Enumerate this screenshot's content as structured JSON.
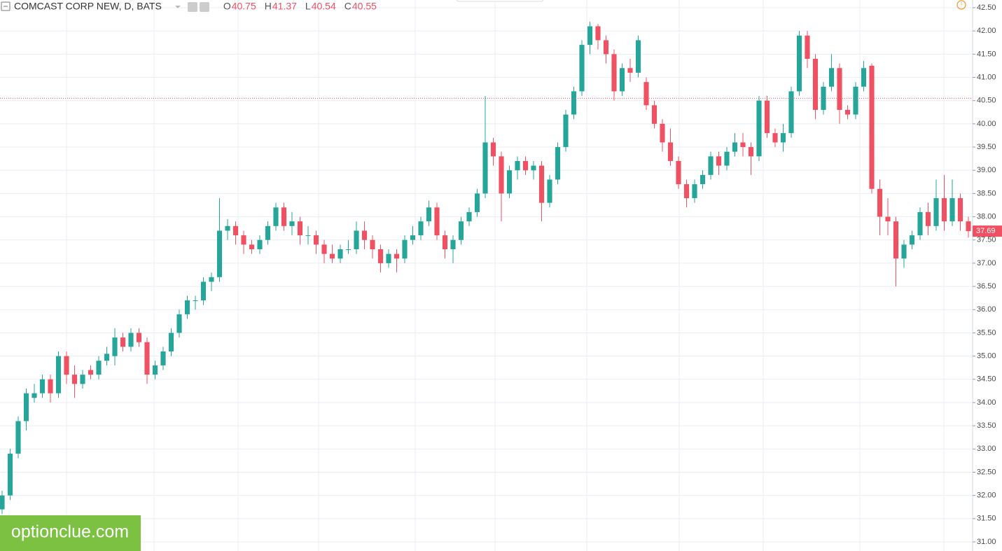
{
  "chart_data": {
    "type": "candlestick",
    "title": "COMCAST CORP NEW, D, BATS",
    "legend": [
      {
        "label": "O",
        "value": 40.75
      },
      {
        "label": "H",
        "value": 41.37
      },
      {
        "label": "L",
        "value": 40.54
      },
      {
        "label": "C",
        "value": 40.55
      }
    ],
    "last_price": 37.69,
    "up_color": "#26a69a",
    "down_color": "#ef5062",
    "watermark": "optionclue.com",
    "ylim": [
      30.9,
      42.6
    ],
    "yticks": [
      {
        "value": 31,
        "label": "31.00"
      },
      {
        "value": 31.5,
        "label": "31.50"
      },
      {
        "value": 32,
        "label": "32.00"
      },
      {
        "value": 32.5,
        "label": "32.50"
      },
      {
        "value": 33,
        "label": "33.00"
      },
      {
        "value": 33.5,
        "label": "33.50"
      },
      {
        "value": 34,
        "label": "34.00"
      },
      {
        "value": 34.5,
        "label": "34.50"
      },
      {
        "value": 35,
        "label": "35.00"
      },
      {
        "value": 35.5,
        "label": "35.50"
      },
      {
        "value": 36,
        "label": "36.00"
      },
      {
        "value": 36.5,
        "label": "36.50"
      },
      {
        "value": 37,
        "label": "37.00"
      },
      {
        "value": 37.5,
        "label": "37.50"
      },
      {
        "value": 38,
        "label": "38.00"
      },
      {
        "value": 38.5,
        "label": "38.50"
      },
      {
        "value": 39,
        "label": "39.00"
      },
      {
        "value": 39.5,
        "label": "39.50"
      },
      {
        "value": 40,
        "label": "40.00"
      },
      {
        "value": 40.5,
        "label": "40.50"
      },
      {
        "value": 41,
        "label": "41.00"
      },
      {
        "value": 41.5,
        "label": "41.50"
      },
      {
        "value": 42,
        "label": "42.00"
      },
      {
        "value": 42.5,
        "label": "42.50"
      }
    ],
    "grid": true,
    "ohlc": [
      [
        31.7,
        32.1,
        31.6,
        32.0
      ],
      [
        32.0,
        33.0,
        31.9,
        32.9
      ],
      [
        32.9,
        33.7,
        32.8,
        33.6
      ],
      [
        33.6,
        34.3,
        33.4,
        34.2
      ],
      [
        34.1,
        34.4,
        34.0,
        34.2
      ],
      [
        34.2,
        34.6,
        34.1,
        34.5
      ],
      [
        34.5,
        34.6,
        34.0,
        34.2
      ],
      [
        34.2,
        35.1,
        34.1,
        35.0
      ],
      [
        35.0,
        35.1,
        34.4,
        34.6
      ],
      [
        34.6,
        34.8,
        34.1,
        34.4
      ],
      [
        34.4,
        34.7,
        34.3,
        34.6
      ],
      [
        34.7,
        34.8,
        34.5,
        34.6
      ],
      [
        34.6,
        35.0,
        34.5,
        34.9
      ],
      [
        34.9,
        35.2,
        34.8,
        35.05
      ],
      [
        35.0,
        35.6,
        34.8,
        35.4
      ],
      [
        35.4,
        35.5,
        35.1,
        35.2
      ],
      [
        35.2,
        35.6,
        35.1,
        35.5
      ],
      [
        35.5,
        35.6,
        35.2,
        35.3
      ],
      [
        35.3,
        35.4,
        34.4,
        34.6
      ],
      [
        34.6,
        34.9,
        34.5,
        34.8
      ],
      [
        34.8,
        35.2,
        34.7,
        35.1
      ],
      [
        35.1,
        35.6,
        35.0,
        35.5
      ],
      [
        35.5,
        36.0,
        35.4,
        35.9
      ],
      [
        35.9,
        36.3,
        35.8,
        36.2
      ],
      [
        36.2,
        36.3,
        36.0,
        36.2
      ],
      [
        36.2,
        36.7,
        36.1,
        36.6
      ],
      [
        36.6,
        36.8,
        36.4,
        36.7
      ],
      [
        36.7,
        38.4,
        36.6,
        37.7
      ],
      [
        37.7,
        37.95,
        37.5,
        37.8
      ],
      [
        37.8,
        37.9,
        37.4,
        37.6
      ],
      [
        37.6,
        37.7,
        37.2,
        37.4
      ],
      [
        37.4,
        37.5,
        37.2,
        37.3
      ],
      [
        37.3,
        37.6,
        37.2,
        37.5
      ],
      [
        37.5,
        37.9,
        37.4,
        37.8
      ],
      [
        37.8,
        38.3,
        37.7,
        38.2
      ],
      [
        38.2,
        38.3,
        37.7,
        37.8
      ],
      [
        37.8,
        38.1,
        37.6,
        37.9
      ],
      [
        37.9,
        38.0,
        37.4,
        37.6
      ],
      [
        37.6,
        37.8,
        37.4,
        37.6
      ],
      [
        37.6,
        37.7,
        37.2,
        37.4
      ],
      [
        37.4,
        37.5,
        37.0,
        37.2
      ],
      [
        37.2,
        37.4,
        37.0,
        37.1
      ],
      [
        37.1,
        37.4,
        37.0,
        37.3
      ],
      [
        37.3,
        37.5,
        37.2,
        37.3
      ],
      [
        37.3,
        37.9,
        37.2,
        37.7
      ],
      [
        37.7,
        37.9,
        37.3,
        37.5
      ],
      [
        37.5,
        37.6,
        37.1,
        37.3
      ],
      [
        37.3,
        37.4,
        36.8,
        37.0
      ],
      [
        37.0,
        37.3,
        36.9,
        37.2
      ],
      [
        37.2,
        37.3,
        36.8,
        37.1
      ],
      [
        37.1,
        37.6,
        37.0,
        37.5
      ],
      [
        37.5,
        37.8,
        37.4,
        37.6
      ],
      [
        37.6,
        38.0,
        37.5,
        37.9
      ],
      [
        37.9,
        38.35,
        37.8,
        38.2
      ],
      [
        38.2,
        38.3,
        37.5,
        37.6
      ],
      [
        37.6,
        37.7,
        37.1,
        37.3
      ],
      [
        37.3,
        37.6,
        37.0,
        37.5
      ],
      [
        37.5,
        38.0,
        37.4,
        37.9
      ],
      [
        37.9,
        38.2,
        37.8,
        38.1
      ],
      [
        38.1,
        38.6,
        38.0,
        38.5
      ],
      [
        38.5,
        40.6,
        38.4,
        39.6
      ],
      [
        39.6,
        39.7,
        39.1,
        39.3
      ],
      [
        39.3,
        39.4,
        37.9,
        38.5
      ],
      [
        38.5,
        39.1,
        38.4,
        39.0
      ],
      [
        39.0,
        39.3,
        38.8,
        39.2
      ],
      [
        39.2,
        39.3,
        38.9,
        39.0
      ],
      [
        39.0,
        39.2,
        38.8,
        39.1
      ],
      [
        39.1,
        39.2,
        37.9,
        38.3
      ],
      [
        38.3,
        38.9,
        38.2,
        38.8
      ],
      [
        38.8,
        39.6,
        38.7,
        39.5
      ],
      [
        39.5,
        40.3,
        39.4,
        40.2
      ],
      [
        40.2,
        40.8,
        40.1,
        40.7
      ],
      [
        40.7,
        41.8,
        40.6,
        41.7
      ],
      [
        41.7,
        42.2,
        41.5,
        42.1
      ],
      [
        42.1,
        42.15,
        41.6,
        41.8
      ],
      [
        41.8,
        41.9,
        41.3,
        41.5
      ],
      [
        41.5,
        41.6,
        40.5,
        40.7
      ],
      [
        40.7,
        41.3,
        40.6,
        41.2
      ],
      [
        41.2,
        41.4,
        40.9,
        41.1
      ],
      [
        41.1,
        41.9,
        41.0,
        41.8
      ],
      [
        40.9,
        41.0,
        40.3,
        40.4
      ],
      [
        40.4,
        40.5,
        39.9,
        40.0
      ],
      [
        40.0,
        40.1,
        39.4,
        39.6
      ],
      [
        39.6,
        39.9,
        39.1,
        39.2
      ],
      [
        39.2,
        39.3,
        38.6,
        38.7
      ],
      [
        38.7,
        38.8,
        38.2,
        38.4
      ],
      [
        38.4,
        38.8,
        38.3,
        38.7
      ],
      [
        38.7,
        39.0,
        38.6,
        38.9
      ],
      [
        38.9,
        39.4,
        38.8,
        39.3
      ],
      [
        39.3,
        39.4,
        38.9,
        39.1
      ],
      [
        39.1,
        39.5,
        39.0,
        39.4
      ],
      [
        39.4,
        39.8,
        39.3,
        39.6
      ],
      [
        39.6,
        39.8,
        39.3,
        39.5
      ],
      [
        39.5,
        39.6,
        38.9,
        39.3
      ],
      [
        39.3,
        40.6,
        39.2,
        40.5
      ],
      [
        40.5,
        40.6,
        39.7,
        39.8
      ],
      [
        39.8,
        39.9,
        39.5,
        39.6
      ],
      [
        39.6,
        40.0,
        39.4,
        39.8
      ],
      [
        39.8,
        40.8,
        39.7,
        40.7
      ],
      [
        40.7,
        42.0,
        40.6,
        41.9
      ],
      [
        41.9,
        42.0,
        41.2,
        41.4
      ],
      [
        41.4,
        41.5,
        40.1,
        40.3
      ],
      [
        40.3,
        40.9,
        40.2,
        40.8
      ],
      [
        40.8,
        41.5,
        40.7,
        41.2
      ],
      [
        41.2,
        41.3,
        40.0,
        40.3
      ],
      [
        40.3,
        40.4,
        40.1,
        40.2
      ],
      [
        40.2,
        40.9,
        40.1,
        40.8
      ],
      [
        40.8,
        41.35,
        40.7,
        41.2
      ],
      [
        41.25,
        41.3,
        38.5,
        38.6
      ],
      [
        38.6,
        38.8,
        37.6,
        38.0
      ],
      [
        38.0,
        38.4,
        37.6,
        37.9
      ],
      [
        37.9,
        38.0,
        36.5,
        37.1
      ],
      [
        37.1,
        37.5,
        36.9,
        37.4
      ],
      [
        37.4,
        37.7,
        37.3,
        37.6
      ],
      [
        37.6,
        38.2,
        37.5,
        38.1
      ],
      [
        38.1,
        38.3,
        37.6,
        37.8
      ],
      [
        37.8,
        38.8,
        37.7,
        38.4
      ],
      [
        38.4,
        38.9,
        37.7,
        37.9
      ],
      [
        37.9,
        38.8,
        37.8,
        38.4
      ],
      [
        38.4,
        38.5,
        37.7,
        37.9
      ],
      [
        37.9,
        38.0,
        37.55,
        37.69
      ]
    ]
  }
}
